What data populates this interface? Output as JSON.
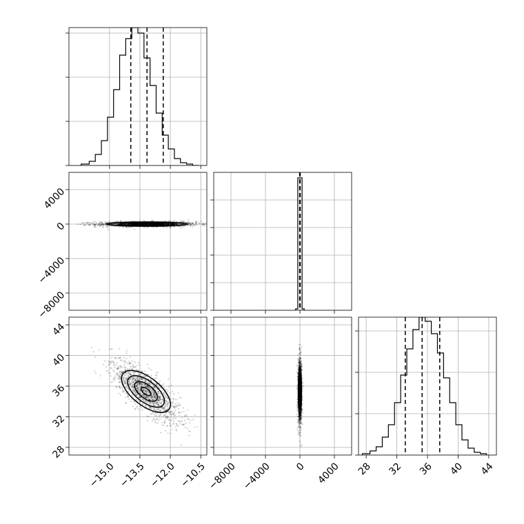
{
  "chart_data": {
    "type": "corner",
    "parameters": [
      "p0",
      "p1",
      "p2"
    ],
    "panels": [
      {
        "id": "p0-hist",
        "type": "histogram",
        "row": 0,
        "col": 0,
        "xlim": [
          -17.0,
          -10.2
        ],
        "ylim": [
          0,
          1.0
        ],
        "bin_edges": [
          -16.4,
          -16.0,
          -15.7,
          -15.4,
          -15.1,
          -14.8,
          -14.5,
          -14.2,
          -13.9,
          -13.6,
          -13.3,
          -13.0,
          -12.7,
          -12.4,
          -12.1,
          -11.8,
          -11.5,
          -11.2,
          -10.9,
          -10.6
        ],
        "counts": [
          0.01,
          0.03,
          0.08,
          0.18,
          0.35,
          0.55,
          0.8,
          0.92,
          1.0,
          0.96,
          0.78,
          0.58,
          0.38,
          0.22,
          0.12,
          0.05,
          0.02,
          0.01,
          0.0
        ],
        "quantiles": [
          -13.95,
          -13.15,
          -12.35
        ],
        "yticks": [
          0.0,
          0.32,
          0.64,
          0.96
        ],
        "xtick_values": [
          -15.0,
          -13.5,
          -12.0,
          -10.5
        ],
        "show_x_labels": false,
        "show_y_labels": false
      },
      {
        "id": "p0-p1-scatter",
        "type": "scatter",
        "row": 1,
        "col": 0,
        "xlim": [
          -17.0,
          -10.2
        ],
        "ylim": [
          -10000,
          6000
        ],
        "x_param": 0,
        "y_param": 1,
        "xtick_values": [
          -15.0,
          -13.5,
          -12.0,
          -10.5
        ],
        "ytick_values": [
          4000,
          0,
          -4000,
          -8000
        ],
        "ytick_labels": [
          "4000",
          "0",
          "−4000",
          "−8000"
        ],
        "center": [
          -13.15,
          0
        ],
        "contour_levels": [
          {
            "sx": 2.0,
            "sy": 250
          },
          {
            "sx": 1.4,
            "sy": 160
          },
          {
            "sx": 0.8,
            "sy": 90
          }
        ],
        "show_x_labels": false,
        "show_y_labels": true
      },
      {
        "id": "p1-hist",
        "type": "histogram",
        "row": 1,
        "col": 1,
        "xlim": [
          -10000,
          6000
        ],
        "ylim": [
          0,
          1.0
        ],
        "bin_edges": [
          -500,
          -250,
          0,
          250,
          500
        ],
        "counts": [
          0.01,
          0.96,
          0.96,
          0.01
        ],
        "quantiles": [
          -30,
          0,
          30
        ],
        "yticks": [
          0.0,
          0.2,
          0.4,
          0.6,
          0.8
        ],
        "xtick_values": [
          -8000,
          -4000,
          0,
          4000
        ],
        "show_x_labels": false,
        "show_y_labels": false
      },
      {
        "id": "p0-p2-scatter",
        "type": "scatter",
        "row": 2,
        "col": 0,
        "xlim": [
          -17.0,
          -10.2
        ],
        "ylim": [
          27,
          45
        ],
        "x_param": 0,
        "y_param": 2,
        "xtick_values": [
          -15.0,
          -13.5,
          -12.0,
          -10.5
        ],
        "xtick_labels": [
          "−15.0",
          "−13.5",
          "−12.0",
          "−10.5"
        ],
        "ytick_values": [
          44,
          40,
          36,
          32,
          28
        ],
        "ytick_labels": [
          "44",
          "40",
          "36",
          "32",
          "28"
        ],
        "center": [
          -13.2,
          35.3
        ],
        "correlation": -0.78,
        "contour_levels": [
          {
            "sx": 1.35,
            "sy": 3.3
          },
          {
            "sx": 1.0,
            "sy": 2.5
          },
          {
            "sx": 0.6,
            "sy": 1.6
          },
          {
            "sx": 0.25,
            "sy": 0.7
          }
        ],
        "show_x_labels": true,
        "show_y_labels": true
      },
      {
        "id": "p1-p2-scatter",
        "type": "scatter",
        "row": 2,
        "col": 1,
        "xlim": [
          -10000,
          6000
        ],
        "ylim": [
          27,
          45
        ],
        "x_param": 1,
        "y_param": 2,
        "xtick_values": [
          -8000,
          -4000,
          0,
          4000
        ],
        "xtick_labels": [
          "−8000",
          "−4000",
          "0",
          "4000"
        ],
        "ytick_values": [
          44,
          40,
          36,
          32,
          28
        ],
        "center": [
          0,
          35.3
        ],
        "contour_levels": [
          {
            "sx": 180,
            "sy": 3.3
          },
          {
            "sx": 120,
            "sy": 2.4
          },
          {
            "sx": 70,
            "sy": 1.5
          }
        ],
        "show_x_labels": true,
        "show_y_labels": false
      },
      {
        "id": "p2-hist",
        "type": "histogram",
        "row": 2,
        "col": 2,
        "xlim": [
          27,
          45
        ],
        "ylim": [
          0,
          1.0
        ],
        "bin_edges": [
          27.5,
          28.5,
          29.3,
          30.1,
          30.9,
          31.7,
          32.5,
          33.3,
          34.1,
          34.9,
          35.7,
          36.5,
          37.3,
          38.1,
          38.9,
          39.7,
          40.5,
          41.3,
          42.1,
          42.9,
          43.7
        ],
        "counts": [
          0.01,
          0.03,
          0.06,
          0.13,
          0.22,
          0.38,
          0.58,
          0.77,
          0.91,
          1.0,
          0.97,
          0.88,
          0.74,
          0.56,
          0.38,
          0.22,
          0.11,
          0.05,
          0.02,
          0.01
        ],
        "quantiles": [
          33.1,
          35.3,
          37.6
        ],
        "yticks": [
          0.0,
          0.3,
          0.6,
          0.9
        ],
        "xtick_values": [
          28,
          32,
          36,
          40,
          44
        ],
        "xtick_labels": [
          "28",
          "32",
          "36",
          "40",
          "44"
        ],
        "show_x_labels": true,
        "show_y_labels": false
      }
    ]
  }
}
